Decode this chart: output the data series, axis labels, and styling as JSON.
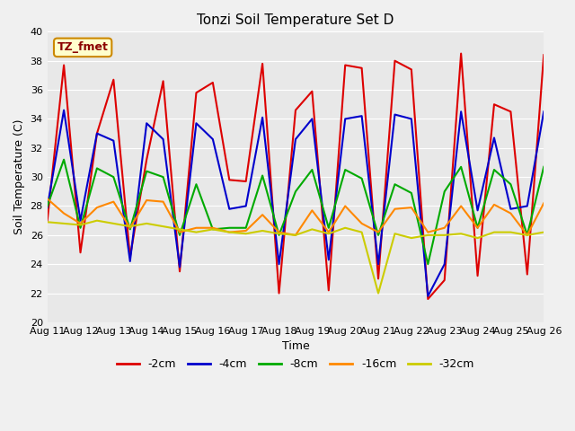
{
  "title": "Tonzi Soil Temperature Set D",
  "xlabel": "Time",
  "ylabel": "Soil Temperature (C)",
  "ylim": [
    20,
    40
  ],
  "xlim": [
    0,
    15
  ],
  "background_color": "#e8e8e8",
  "fig_background": "#f0f0f0",
  "x_tick_labels": [
    "Aug 11",
    "Aug 12",
    "Aug 13",
    "Aug 14",
    "Aug 15",
    "Aug 16",
    "Aug 17",
    "Aug 18",
    "Aug 19",
    "Aug 20",
    "Aug 21",
    "Aug 22",
    "Aug 23",
    "Aug 24",
    "Aug 25",
    "Aug 26"
  ],
  "series_x": [
    0,
    0.5,
    1.0,
    1.5,
    2.0,
    2.5,
    3.0,
    3.5,
    4.0,
    4.5,
    5.0,
    5.5,
    6.0,
    6.5,
    7.0,
    7.5,
    8.0,
    8.5,
    9.0,
    9.5,
    10.0,
    10.5,
    11.0,
    11.5,
    12.0,
    12.5,
    13.0,
    13.5,
    14.0,
    14.5,
    15.0
  ],
  "series_data": {
    "-2cm": [
      27.0,
      37.7,
      24.8,
      33.0,
      36.7,
      24.5,
      31.2,
      36.6,
      23.5,
      35.8,
      36.5,
      29.8,
      29.7,
      37.8,
      22.0,
      34.6,
      35.9,
      22.2,
      37.7,
      37.5,
      23.0,
      38.0,
      37.4,
      21.6,
      22.9,
      38.5,
      23.2,
      35.0,
      34.5,
      23.3,
      38.4
    ],
    "-4cm": [
      27.9,
      34.6,
      27.0,
      33.0,
      32.5,
      24.2,
      33.7,
      32.6,
      23.8,
      33.7,
      32.6,
      27.8,
      28.0,
      34.1,
      24.0,
      32.6,
      34.0,
      24.3,
      34.0,
      34.2,
      24.0,
      34.3,
      34.0,
      21.8,
      24.0,
      34.5,
      27.7,
      32.7,
      27.8,
      28.0,
      34.5
    ],
    "-8cm": [
      28.0,
      31.2,
      26.5,
      30.6,
      30.0,
      26.4,
      30.4,
      30.0,
      26.0,
      29.5,
      26.4,
      26.5,
      26.5,
      30.1,
      26.0,
      29.0,
      30.5,
      26.5,
      30.5,
      29.9,
      26.0,
      29.5,
      28.9,
      24.0,
      29.0,
      30.7,
      26.5,
      30.5,
      29.5,
      26.0,
      30.7
    ],
    "-16cm": [
      28.5,
      27.5,
      26.8,
      27.9,
      28.3,
      26.5,
      28.4,
      28.3,
      26.2,
      26.5,
      26.5,
      26.2,
      26.3,
      27.4,
      26.2,
      26.0,
      27.7,
      26.2,
      28.0,
      26.8,
      26.2,
      27.8,
      27.9,
      26.2,
      26.5,
      28.0,
      26.5,
      28.1,
      27.5,
      26.0,
      28.2
    ],
    "-32cm": [
      26.9,
      26.8,
      26.7,
      27.0,
      26.8,
      26.6,
      26.8,
      26.6,
      26.4,
      26.2,
      26.4,
      26.2,
      26.1,
      26.3,
      26.1,
      26.0,
      26.4,
      26.1,
      26.5,
      26.2,
      22.0,
      26.1,
      25.8,
      26.0,
      26.0,
      26.1,
      25.8,
      26.2,
      26.2,
      26.0,
      26.2
    ]
  },
  "colors": {
    "-2cm": "#dd0000",
    "-4cm": "#0000cc",
    "-8cm": "#00aa00",
    "-16cm": "#ff8800",
    "-32cm": "#cccc00"
  },
  "line_width": 1.5,
  "yticks": [
    20,
    22,
    24,
    26,
    28,
    30,
    32,
    34,
    36,
    38,
    40
  ],
  "annotation_text": "TZ_fmet",
  "annotation_color": "#8b0000",
  "annotation_bg": "#ffffcc",
  "annotation_edge": "#cc8800"
}
